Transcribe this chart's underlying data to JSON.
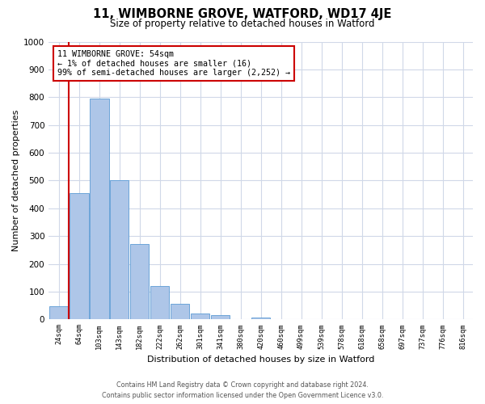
{
  "title": "11, WIMBORNE GROVE, WATFORD, WD17 4JE",
  "subtitle": "Size of property relative to detached houses in Watford",
  "xlabel": "Distribution of detached houses by size in Watford",
  "ylabel": "Number of detached properties",
  "bar_labels": [
    "24sqm",
    "64sqm",
    "103sqm",
    "143sqm",
    "182sqm",
    "222sqm",
    "262sqm",
    "301sqm",
    "341sqm",
    "380sqm",
    "420sqm",
    "460sqm",
    "499sqm",
    "539sqm",
    "578sqm",
    "618sqm",
    "658sqm",
    "697sqm",
    "737sqm",
    "776sqm",
    "816sqm"
  ],
  "bar_values": [
    47,
    455,
    795,
    500,
    270,
    120,
    55,
    20,
    15,
    0,
    8,
    0,
    0,
    0,
    0,
    0,
    0,
    0,
    0,
    0,
    0
  ],
  "bar_color": "#aec6e8",
  "bar_edge_color": "#5b9bd5",
  "highlight_color": "#cc0000",
  "ylim": [
    0,
    1000
  ],
  "yticks": [
    0,
    100,
    200,
    300,
    400,
    500,
    600,
    700,
    800,
    900,
    1000
  ],
  "grid_color": "#d0d8e8",
  "annotation_line1": "11 WIMBORNE GROVE: 54sqm",
  "annotation_line2": "← 1% of detached houses are smaller (16)",
  "annotation_line3": "99% of semi-detached houses are larger (2,252) →",
  "annotation_box_color": "#ffffff",
  "annotation_box_edge": "#cc0000",
  "footer_line1": "Contains HM Land Registry data © Crown copyright and database right 2024.",
  "footer_line2": "Contains public sector information licensed under the Open Government Licence v3.0.",
  "bg_color": "#ffffff"
}
